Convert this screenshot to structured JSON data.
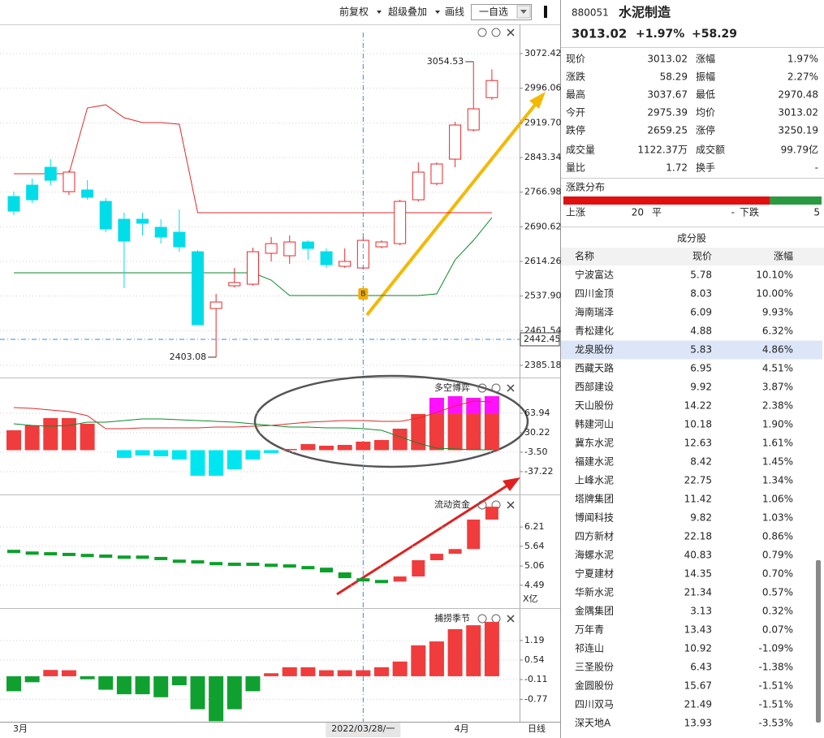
{
  "toolbar": {
    "items": [
      "前复权",
      "超级叠加",
      "画线"
    ],
    "watchlist": "一自选",
    "period": "日线"
  },
  "chart_data": [
    {
      "type": "candlestick",
      "categories": [
        "3月",
        null,
        null,
        null,
        null,
        null,
        null,
        null,
        null,
        null,
        null,
        null,
        null,
        null,
        null,
        null,
        null,
        null,
        null,
        "2022/03/28/一",
        null,
        null,
        null,
        null,
        "4月",
        null,
        null
      ],
      "open": [
        2757.4,
        2782.4,
        2821.8,
        2768.1,
        2771.7,
        2746.6,
        2707.2,
        2707.2,
        2689.3,
        2678.6,
        2635.6,
        2510.4,
        2560.5,
        2564.0,
        2632.1,
        2626.7,
        2657.1,
        2635.6,
        2603.4,
        2599.8,
        2646.4,
        2653.5,
        2750.2,
        2786.0,
        2839.7,
        2904.1,
        2975.39
      ],
      "high": [
        2768.1,
        2796.8,
        2839.7,
        2814.6,
        2793.2,
        2753.8,
        2721.6,
        2721.6,
        2707.2,
        2728.7,
        2639.2,
        2542.6,
        2599.8,
        2644.6,
        2667.9,
        2671.4,
        2660.7,
        2642.8,
        2642.8,
        2667.9,
        2660.7,
        2750.2,
        2832.5,
        2832.5,
        2922.0,
        3054.53,
        3037.67
      ],
      "low": [
        2716.2,
        2743.0,
        2782.4,
        2761.0,
        2750.2,
        2678.6,
        2555.1,
        2671.4,
        2653.5,
        2635.6,
        2474.6,
        2403.08,
        2556.9,
        2560.5,
        2614.2,
        2608.8,
        2617.7,
        2599.8,
        2599.8,
        2596.3,
        2642.8,
        2650.0,
        2746.6,
        2782.4,
        2821.8,
        2900.6,
        2970.48
      ],
      "close": [
        2725.1,
        2750.2,
        2793.2,
        2811.1,
        2755.6,
        2685.8,
        2658.9,
        2698.3,
        2667.9,
        2646.4,
        2474.6,
        2524.7,
        2567.6,
        2635.6,
        2653.5,
        2657.1,
        2642.8,
        2607.0,
        2614.2,
        2660.7,
        2657.1,
        2746.6,
        2811.1,
        2829.0,
        2914.9,
        2950.7,
        3013.02
      ],
      "up_color": "#e8282b",
      "down_color": "#00dde8",
      "series": [
        {
          "color": "#e02a2a",
          "values": [
            2807.5,
            2807.5,
            2807.5,
            2807.5,
            2952.5,
            2959.6,
            2931.0,
            2920.3,
            2920.3,
            2916.7,
            2721.6,
            2721.6,
            2721.6,
            2721.6,
            2721.6,
            2721.6,
            2721.6,
            2721.6,
            2721.6,
            2721.6,
            2721.6,
            2721.6,
            2721.6,
            2721.6,
            2721.6,
            2721.6,
            2721.6
          ]
        },
        {
          "color": "#0a8a2a",
          "values": [
            2589.1,
            2589.1,
            2589.1,
            2589.1,
            2589.1,
            2589.1,
            2589.1,
            2589.1,
            2589.1,
            2589.1,
            2589.1,
            2589.1,
            2589.1,
            2589.1,
            2573.0,
            2539.0,
            2539.0,
            2539.0,
            2539.0,
            2539.0,
            2539.0,
            2539.0,
            2539.0,
            2542.6,
            2617.7,
            2660.7,
            2710.8
          ]
        }
      ],
      "ylim": [
        2363.6,
        3136.9
      ],
      "yticks": [
        3072.42,
        2996.06,
        {
          "value": 2919.7,
          "label": "2919.70"
        },
        2843.34,
        2766.98,
        2690.62,
        2614.26,
        {
          "value": 2537.9,
          "label": "2537.90"
        },
        2461.54,
        2385.18
      ],
      "high_label": 3054.53,
      "low_label": 2403.08,
      "reference_line": 2442.45,
      "signal": "B",
      "grid": true
    },
    {
      "type": "bar",
      "title": "多空博弈",
      "values": [
        34.4,
        42.9,
        55.5,
        55.5,
        45.7,
        0,
        -13.3,
        -9.1,
        -10.5,
        -16.2,
        -44.3,
        -44.3,
        -33.0,
        -16.2,
        -4.9,
        2.1,
        10.5,
        7.7,
        9.1,
        14.8,
        17.6,
        37.2,
        62.5,
        90.6,
        93.4,
        90.6,
        93.4
      ],
      "up_color": "#f03c3c",
      "down_color": "#00e6f0",
      "strong_color": "#ff10ff",
      "strong_threshold": 62.5,
      "series": [
        {
          "color": "#e02a2a",
          "values": [
            73.8,
            72.4,
            69.5,
            66.7,
            59.7,
            37.2,
            37.2,
            38.6,
            38.6,
            38.6,
            38.6,
            40.0,
            40.0,
            41.4,
            42.9,
            45.7,
            48.5,
            49.9,
            51.3,
            51.3,
            49.9,
            49.9,
            55.5,
            65.3,
            76.6,
            85.0,
            83.6
          ]
        },
        {
          "color": "#0a8a2a",
          "values": [
            45.7,
            42.9,
            41.4,
            42.9,
            48.5,
            48.5,
            51.3,
            54.1,
            54.1,
            52.7,
            51.3,
            49.9,
            48.5,
            45.7,
            42.9,
            40.0,
            40.0,
            38.6,
            38.6,
            37.2,
            34.4,
            23.2,
            11.9,
            3.5,
            2.1,
            0.7,
            0.7
          ]
        }
      ],
      "ylim": [
        -72.4,
        121.5
      ],
      "yticks": [
        63.94,
        30.22,
        {
          "value": -3.5,
          "label": "-3.50"
        },
        -37.22
      ],
      "grid": true
    },
    {
      "type": "flow",
      "title": "流动资金",
      "unit": "X亿",
      "values": [
        5.49,
        5.44,
        5.42,
        5.4,
        5.37,
        5.35,
        5.32,
        5.32,
        5.28,
        5.2,
        5.18,
        5.13,
        5.11,
        5.11,
        5.08,
        5.06,
        5.01,
        4.87,
        4.7,
        4.65,
        4.6,
        4.75,
        5.23,
        5.42,
        5.56,
        6.43,
        6.81
      ],
      "up_color": "#f03c3c",
      "down_color": "#0aa02a",
      "ylim": [
        3.84,
        7.1
      ],
      "yticks": [
        6.21,
        5.64,
        5.06,
        4.49
      ],
      "grid": true
    },
    {
      "type": "bar",
      "title": "捕捞季节",
      "values": [
        -0.5,
        -0.2,
        0.21,
        0.2,
        -0.1,
        -0.45,
        -0.6,
        -0.6,
        -0.7,
        -0.3,
        -1.1,
        -1.5,
        -1.1,
        -0.5,
        0.1,
        0.3,
        0.3,
        0.2,
        0.2,
        0.2,
        0.3,
        0.49,
        1.03,
        1.16,
        1.57,
        1.7,
        1.81
      ],
      "up_color": "#f03c3c",
      "down_color": "#10a030",
      "ylim": [
        -1.49,
        2.19
      ],
      "yticks": [
        1.19,
        0.54,
        -0.11,
        -0.77
      ],
      "grid": true
    }
  ],
  "quote": {
    "code": "880051",
    "name": "水泥制造",
    "price": "3013.02",
    "change_pct": "+1.97%",
    "change": "+58.29",
    "fields": [
      {
        "label": "现价",
        "value": "3013.02",
        "color": "#e01010"
      },
      {
        "label": "涨幅",
        "value": "1.97%",
        "color": "#e01010"
      },
      {
        "label": "涨跌",
        "value": "58.29",
        "color": "#e01010"
      },
      {
        "label": "振幅",
        "value": "2.27%",
        "color": "#222222"
      },
      {
        "label": "最高",
        "value": "3037.67",
        "color": "#e01010"
      },
      {
        "label": "最低",
        "value": "2970.48",
        "color": "#e01010"
      },
      {
        "label": "今开",
        "value": "2975.39",
        "color": "#e01010"
      },
      {
        "label": "均价",
        "value": "3013.02",
        "color": "#e01010"
      },
      {
        "label": "跌停",
        "value": "2659.25",
        "color": "#089020"
      },
      {
        "label": "涨停",
        "value": "3250.19",
        "color": "#e01010"
      },
      {
        "label": "成交量",
        "value": "1122.37万",
        "color": "#222222"
      },
      {
        "label": "成交额",
        "value": "99.79亿",
        "color": "#222222"
      },
      {
        "label": "量比",
        "value": "1.72",
        "color": "#222222"
      },
      {
        "label": "换手",
        "value": "-",
        "color": "#222222"
      }
    ]
  },
  "breadth": {
    "title": "涨跌分布",
    "up_label": "上涨",
    "up": 20,
    "flat_label": "平",
    "flat": "-",
    "down_label": "下跌",
    "down": 5,
    "up_color": "#e01010",
    "down_color": "#2a9a40"
  },
  "constituents": {
    "title": "成分股",
    "columns": [
      "名称",
      "现价",
      "涨幅"
    ],
    "rows": [
      [
        "宁波富达",
        "5.78",
        "10.10%"
      ],
      [
        "四川金顶",
        "8.03",
        "10.00%"
      ],
      [
        "海南瑞泽",
        "6.09",
        "9.93%"
      ],
      [
        "青松建化",
        "4.88",
        "6.32%"
      ],
      [
        "龙泉股份",
        "5.83",
        "4.86%"
      ],
      [
        "西藏天路",
        "6.95",
        "4.51%"
      ],
      [
        "西部建设",
        "9.92",
        "3.87%"
      ],
      [
        "天山股份",
        "14.22",
        "2.38%"
      ],
      [
        "韩建河山",
        "10.18",
        "1.90%"
      ],
      [
        "冀东水泥",
        "12.63",
        "1.61%"
      ],
      [
        "福建水泥",
        "8.42",
        "1.45%"
      ],
      [
        "上峰水泥",
        "22.75",
        "1.34%"
      ],
      [
        "塔牌集团",
        "11.42",
        "1.06%"
      ],
      [
        "博闻科技",
        "9.82",
        "1.03%"
      ],
      [
        "四方新材",
        "22.18",
        "0.86%"
      ],
      [
        "海螺水泥",
        "40.83",
        "0.79%"
      ],
      [
        "宁夏建材",
        "14.35",
        "0.70%"
      ],
      [
        "华新水泥",
        "21.34",
        "0.57%"
      ],
      [
        "金隅集团",
        "3.13",
        "0.32%"
      ],
      [
        "万年青",
        "13.43",
        "0.07%"
      ],
      [
        "祁连山",
        "10.92",
        "-1.09%"
      ],
      [
        "三圣股份",
        "6.43",
        "-1.38%"
      ],
      [
        "金圆股份",
        "15.67",
        "-1.51%"
      ],
      [
        "四川双马",
        "21.49",
        "-1.51%"
      ],
      [
        "深天地A",
        "13.93",
        "-3.53%"
      ]
    ]
  }
}
